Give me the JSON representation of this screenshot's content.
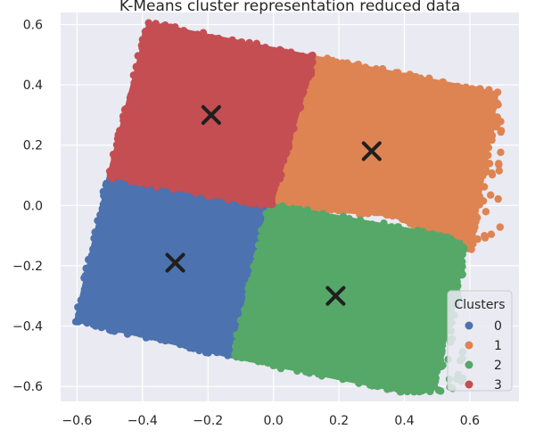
{
  "chart_data": {
    "type": "scatter",
    "title": "K-Means cluster representation reduced data",
    "xlabel": "",
    "ylabel": "",
    "xlim": [
      -0.65,
      0.75
    ],
    "ylim": [
      -0.65,
      0.64
    ],
    "xticks": [
      -0.6,
      -0.4,
      -0.2,
      0.0,
      0.2,
      0.4,
      0.6
    ],
    "xtick_labels": [
      "−0.6",
      "−0.4",
      "−0.2",
      "0.0",
      "0.2",
      "0.4",
      "0.6"
    ],
    "yticks": [
      -0.6,
      -0.4,
      -0.2,
      0.0,
      0.2,
      0.4,
      0.6
    ],
    "ytick_labels": [
      "−0.6",
      "−0.4",
      "−0.2",
      "0.0",
      "0.2",
      "0.4",
      "0.6"
    ],
    "grid": true,
    "background": "#eaeaf2",
    "legend": {
      "title": "Clusters",
      "placement": "lower-right"
    },
    "series": [
      {
        "name": "0",
        "color": "#4c72b0",
        "region": [
          [
            -0.5,
            0.1
          ],
          [
            -0.01,
            0.0
          ],
          [
            -0.12,
            -0.5
          ],
          [
            -0.6,
            -0.38
          ]
        ]
      },
      {
        "name": "1",
        "color": "#dd8452",
        "region": [
          [
            0.12,
            0.49
          ],
          [
            0.68,
            0.37
          ],
          [
            0.6,
            -0.14
          ],
          [
            0.5,
            -0.1
          ],
          [
            0.38,
            -0.03
          ],
          [
            -0.01,
            0.0
          ]
        ]
      },
      {
        "name": "2",
        "color": "#55a868",
        "region": [
          [
            -0.01,
            0.0
          ],
          [
            0.5,
            -0.1
          ],
          [
            0.58,
            -0.14
          ],
          [
            0.52,
            -0.45
          ],
          [
            0.48,
            -0.61
          ],
          [
            0.38,
            -0.61
          ],
          [
            -0.12,
            -0.5
          ]
        ]
      },
      {
        "name": "3",
        "color": "#c44e52",
        "region": [
          [
            -0.38,
            0.6
          ],
          [
            0.12,
            0.49
          ],
          [
            -0.01,
            0.0
          ],
          [
            -0.5,
            0.1
          ]
        ]
      }
    ],
    "centroids": [
      {
        "cluster": "0",
        "x": -0.3,
        "y": -0.19
      },
      {
        "cluster": "1",
        "x": 0.3,
        "y": 0.18
      },
      {
        "cluster": "2",
        "x": 0.19,
        "y": -0.3
      },
      {
        "cluster": "3",
        "x": -0.19,
        "y": 0.3
      }
    ],
    "centroid_marker": "x",
    "centroid_color": "#1f1f1f"
  }
}
